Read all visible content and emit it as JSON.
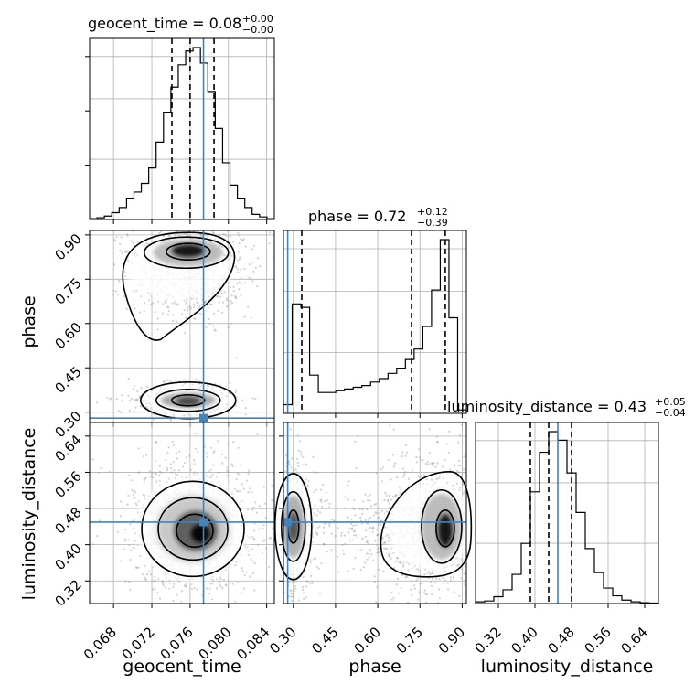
{
  "chart_data": {
    "type": "corner",
    "parameters": [
      "geocent_time",
      "phase",
      "luminosity_distance"
    ],
    "truths": {
      "geocent_time": 0.0774,
      "phase": 0.28,
      "luminosity_distance": 0.45
    },
    "titles": {
      "geocent_time": {
        "label": "geocent_time = 0.08",
        "upper": "+0.00",
        "lower": "−0.00"
      },
      "phase": {
        "label": "phase = 0.72",
        "upper": "+0.12",
        "lower": "−0.39"
      },
      "luminosity_distance": {
        "label": "luminosity_distance = 0.43",
        "upper": "+0.05",
        "lower": "−0.04"
      }
    },
    "ranges": {
      "geocent_time": [
        0.0655,
        0.0848
      ],
      "phase": [
        0.265,
        0.915
      ],
      "luminosity_distance": [
        0.27,
        0.67
      ]
    },
    "ticks": {
      "geocent_time": [
        "0.068",
        "0.072",
        "0.076",
        "0.080",
        "0.084"
      ],
      "phase": [
        "0.30",
        "0.45",
        "0.60",
        "0.75",
        "0.90"
      ],
      "luminosity_distance": [
        "0.32",
        "0.40",
        "0.48",
        "0.56",
        "0.64"
      ]
    },
    "quantiles": {
      "geocent_time": [
        0.0741,
        0.076,
        0.0785
      ],
      "phase": [
        0.33,
        0.72,
        0.84
      ],
      "luminosity_distance": [
        0.39,
        0.43,
        0.48
      ]
    },
    "histograms": {
      "geocent_time": [
        0.005,
        0.01,
        0.02,
        0.04,
        0.07,
        0.12,
        0.16,
        0.21,
        0.3,
        0.45,
        0.62,
        0.77,
        0.9,
        0.98,
        1.0,
        0.91,
        0.74,
        0.53,
        0.33,
        0.2,
        0.12,
        0.07,
        0.03,
        0.015,
        0.005
      ],
      "phase": [
        0.05,
        0.63,
        0.61,
        0.22,
        0.12,
        0.12,
        0.13,
        0.14,
        0.15,
        0.16,
        0.18,
        0.2,
        0.23,
        0.26,
        0.31,
        0.37,
        0.5,
        0.71,
        1.0,
        0.55,
        0.02
      ],
      "luminosity_distance": [
        0.01,
        0.015,
        0.04,
        0.08,
        0.17,
        0.35,
        0.65,
        0.88,
        1.0,
        0.95,
        0.76,
        0.53,
        0.32,
        0.18,
        0.09,
        0.045,
        0.02,
        0.01,
        0.005,
        0.003
      ]
    },
    "pairs": [
      {
        "x": "geocent_time",
        "y": "phase"
      },
      {
        "x": "geocent_time",
        "y": "luminosity_distance"
      },
      {
        "x": "phase",
        "y": "luminosity_distance"
      }
    ],
    "grid": true
  }
}
